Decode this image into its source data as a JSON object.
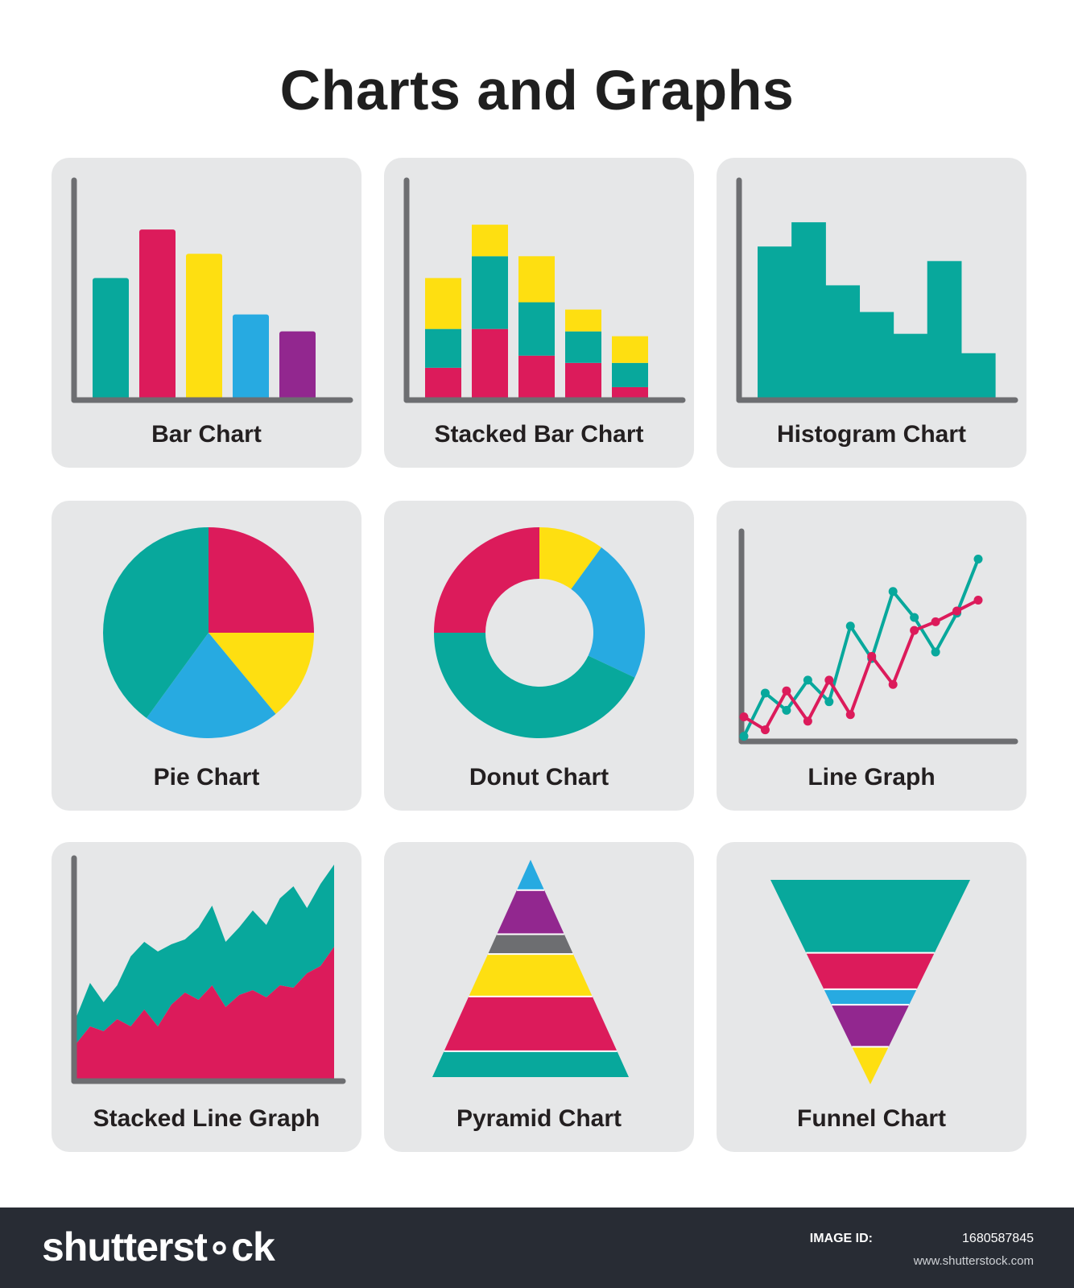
{
  "title": "Charts and Graphs",
  "colors": {
    "teal": "#08a89c",
    "magenta": "#dc1b5b",
    "yellow": "#fedf11",
    "blue": "#27aae1",
    "purple": "#92278f",
    "gray": "#6d6e71",
    "axis": "#6d6e71",
    "tile_bg": "#e6e7e8"
  },
  "footer": {
    "logo": "shutterst∘ck",
    "image_id_label": "IMAGE ID:",
    "image_id": "1680587845",
    "url": "www.shutterstock.com"
  },
  "chart_data": [
    {
      "type": "bar",
      "label": "Bar Chart",
      "values": [
        5,
        7,
        6,
        3.5,
        2.8
      ],
      "colors": [
        "teal",
        "magenta",
        "yellow",
        "blue",
        "purple"
      ],
      "ylim": [
        0,
        8.3
      ]
    },
    {
      "type": "bar",
      "stacked": true,
      "label": "Stacked Bar Chart",
      "series": [
        {
          "color": "magenta",
          "values": [
            1.3,
            2.9,
            1.8,
            1.5,
            0.5
          ]
        },
        {
          "color": "teal",
          "values": [
            1.6,
            3.0,
            2.2,
            1.3,
            1.0
          ]
        },
        {
          "color": "yellow",
          "values": [
            2.1,
            1.3,
            1.9,
            0.9,
            1.1
          ]
        }
      ],
      "ylim": [
        0,
        8.3
      ]
    },
    {
      "type": "bar",
      "histogram": true,
      "label": "Histogram Chart",
      "values": [
        6.3,
        7.3,
        4.7,
        3.6,
        2.7,
        5.7,
        1.9
      ],
      "color": "teal",
      "ylim": [
        0,
        8.3
      ]
    },
    {
      "type": "pie",
      "label": "Pie Chart",
      "slices": [
        {
          "color": "magenta",
          "value": 25
        },
        {
          "color": "yellow",
          "value": 14
        },
        {
          "color": "blue",
          "value": 21
        },
        {
          "color": "teal",
          "value": 40
        }
      ]
    },
    {
      "type": "pie",
      "donut": true,
      "label": "Donut Chart",
      "slices": [
        {
          "color": "yellow",
          "value": 10
        },
        {
          "color": "blue",
          "value": 22
        },
        {
          "color": "teal",
          "value": 43
        },
        {
          "color": "magenta",
          "value": 25
        }
      ]
    },
    {
      "type": "line",
      "label": "Line Graph",
      "x": [
        0,
        1,
        2,
        3,
        4,
        5,
        6,
        7,
        8,
        9,
        10,
        11
      ],
      "series": [
        {
          "color": "teal",
          "values": [
            0.2,
            2.2,
            1.4,
            2.8,
            1.8,
            5.3,
            3.8,
            6.9,
            5.7,
            4.1,
            5.9,
            8.4
          ]
        },
        {
          "color": "magenta",
          "values": [
            1.1,
            0.5,
            2.3,
            0.9,
            2.8,
            1.2,
            3.9,
            2.6,
            5.1,
            5.5,
            6.0,
            6.5
          ]
        }
      ],
      "ylim": [
        0,
        9.5
      ]
    },
    {
      "type": "area",
      "stacked": true,
      "label": "Stacked Line Graph",
      "x": [
        0,
        1,
        2,
        3,
        4,
        5,
        6,
        7,
        8,
        9,
        10,
        11,
        12,
        13,
        14,
        15,
        16,
        17,
        18,
        19
      ],
      "series": [
        {
          "color": "magenta",
          "values": [
            1.5,
            2.2,
            2.0,
            2.5,
            2.2,
            2.9,
            2.2,
            3.1,
            3.6,
            3.3,
            3.9,
            3.0,
            3.5,
            3.7,
            3.4,
            3.9,
            3.8,
            4.4,
            4.7,
            5.5
          ]
        },
        {
          "color": "teal",
          "values": [
            1.1,
            1.8,
            1.2,
            1.4,
            2.9,
            2.8,
            3.1,
            2.5,
            2.2,
            3.0,
            3.3,
            2.7,
            2.8,
            3.3,
            3.0,
            3.6,
            4.2,
            2.7,
            3.4,
            3.4
          ]
        }
      ],
      "ylim": [
        0,
        10
      ]
    },
    {
      "type": "pyramid",
      "label": "Pyramid Chart",
      "layers": [
        {
          "color": "blue",
          "value": 1.0
        },
        {
          "color": "purple",
          "value": 1.45
        },
        {
          "color": "gray",
          "value": 0.65
        },
        {
          "color": "yellow",
          "value": 1.4
        },
        {
          "color": "magenta",
          "value": 1.8
        },
        {
          "color": "teal",
          "value": 0.85
        }
      ]
    },
    {
      "type": "funnel",
      "label": "Funnel Chart",
      "layers": [
        {
          "color": "teal",
          "value": 3.3
        },
        {
          "color": "magenta",
          "value": 1.65
        },
        {
          "color": "blue",
          "value": 0.7
        },
        {
          "color": "purple",
          "value": 1.9
        },
        {
          "color": "yellow",
          "value": 1.7
        }
      ]
    }
  ]
}
